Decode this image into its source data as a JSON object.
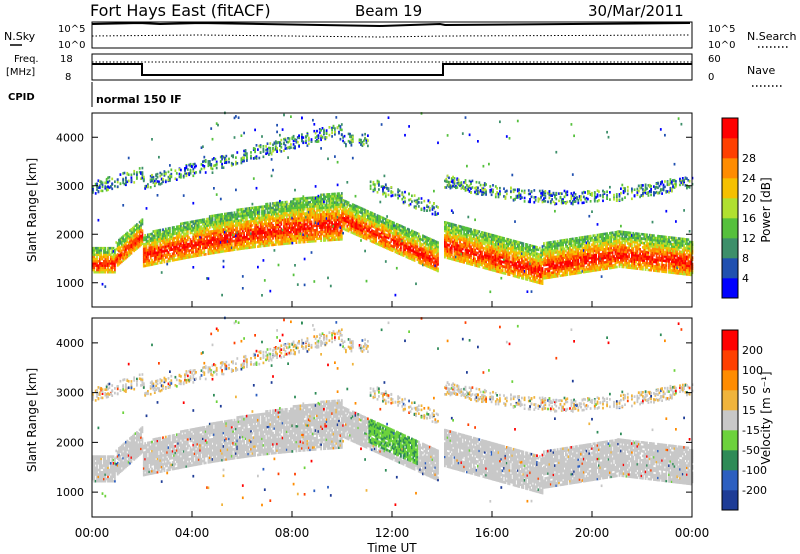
{
  "header": {
    "station": "Fort Hays East (fitACF)",
    "beam": "Beam 19",
    "date": "30/Mar/2011"
  },
  "top_panels": {
    "noise": {
      "left_label": "N.Sky",
      "right_label": "N.Search",
      "left_ticks": [
        "10^5",
        "10^0"
      ],
      "right_ticks": [
        "10^5",
        "10^0"
      ]
    },
    "freq": {
      "left_label_1": "Freq.",
      "left_label_2": "[MHz]",
      "right_label": "Nave",
      "left_ticks": [
        "18",
        "8"
      ],
      "right_ticks": [
        "60",
        "0"
      ]
    },
    "cpid": {
      "label": "CPID",
      "value": "normal 150 IF"
    }
  },
  "chart_data": [
    {
      "type": "heatmap",
      "title": "",
      "ylabel": "Slant Range [km]",
      "xlabel": "",
      "ylim": [
        500,
        4500
      ],
      "yticks": [
        1000,
        2000,
        3000,
        4000
      ],
      "xlim": [
        0,
        24
      ],
      "colorbar": {
        "label": "Power [dB]",
        "ticks": [
          "4",
          "8",
          "12",
          "16",
          "20",
          "24",
          "28"
        ],
        "colors": [
          "#0000ff",
          "#2050b0",
          "#3d8f6a",
          "#55c03c",
          "#b0e030",
          "#f5c000",
          "#ff8c00",
          "#ff4000",
          "#ff0000"
        ]
      }
    },
    {
      "type": "heatmap",
      "title": "",
      "ylabel": "Slant Range [km]",
      "xlabel": "Time UT",
      "ylim": [
        500,
        4500
      ],
      "yticks": [
        1000,
        2000,
        3000,
        4000
      ],
      "xlim": [
        0,
        24
      ],
      "xticks": [
        "00:00",
        "04:00",
        "08:00",
        "12:00",
        "16:00",
        "20:00",
        "00:00"
      ],
      "colorbar": {
        "label": "Velocity [m s⁻¹]",
        "ticks": [
          "200",
          "100",
          "50",
          "15",
          "-15",
          "-50",
          "-100",
          "-200"
        ],
        "colors": [
          "#1e3c96",
          "#2c5fc0",
          "#2e8b57",
          "#6cd23c",
          "#c8c8c8",
          "#f0b43c",
          "#ff8c00",
          "#ff4000",
          "#ff0000"
        ]
      }
    }
  ]
}
